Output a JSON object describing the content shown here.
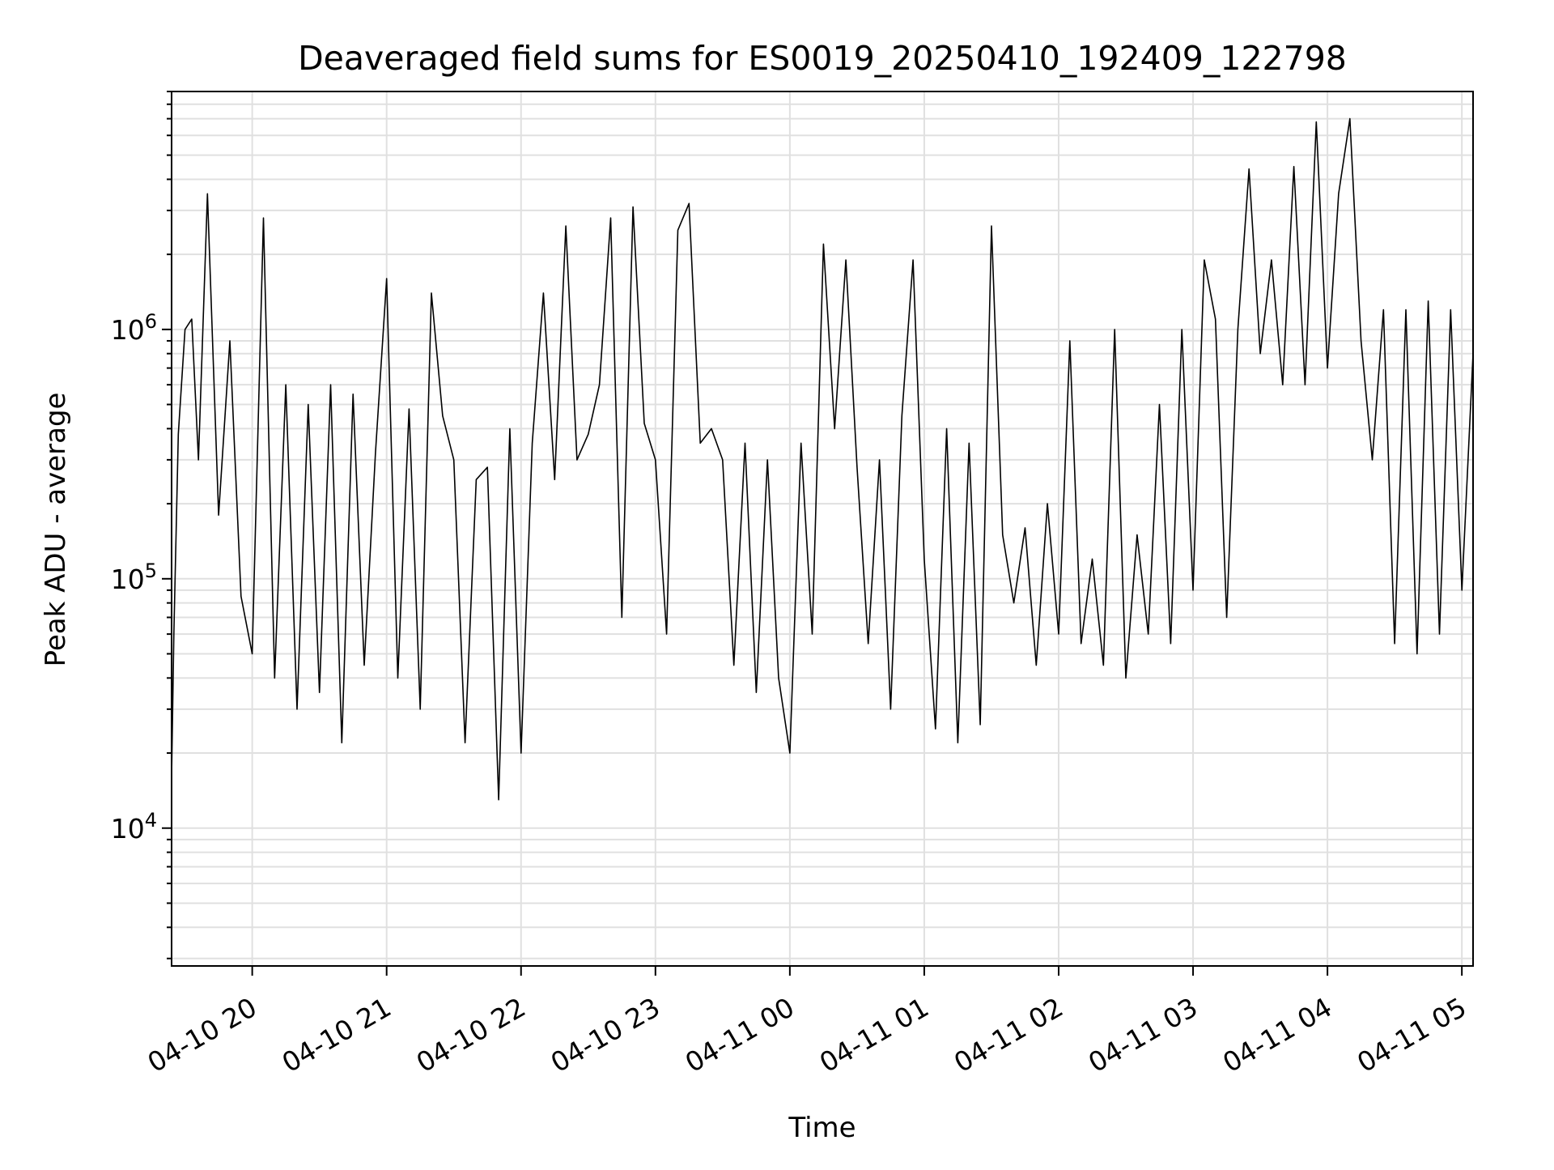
{
  "chart_data": {
    "type": "line",
    "title": "Deaveraged field sums for ES0019_20250410_192409_122798",
    "xlabel": "Time",
    "ylabel": "Peak ADU - average",
    "yscale": "log",
    "xlim": [
      "2025-04-10 19:24",
      "2025-04-11 05:05"
    ],
    "ylim": [
      2800,
      9000000
    ],
    "grid": true,
    "x_ticks": [
      {
        "value": "2025-04-10 20:00",
        "label": "04-10 20"
      },
      {
        "value": "2025-04-10 21:00",
        "label": "04-10 21"
      },
      {
        "value": "2025-04-10 22:00",
        "label": "04-10 22"
      },
      {
        "value": "2025-04-10 23:00",
        "label": "04-10 23"
      },
      {
        "value": "2025-04-11 00:00",
        "label": "04-11 00"
      },
      {
        "value": "2025-04-11 01:00",
        "label": "04-11 01"
      },
      {
        "value": "2025-04-11 02:00",
        "label": "04-11 02"
      },
      {
        "value": "2025-04-11 03:00",
        "label": "04-11 03"
      },
      {
        "value": "2025-04-11 04:00",
        "label": "04-11 04"
      },
      {
        "value": "2025-04-11 05:00",
        "label": "04-11 05"
      }
    ],
    "y_ticks": [
      {
        "value": 10000,
        "base": "10",
        "exp": "4"
      },
      {
        "value": 100000,
        "base": "10",
        "exp": "5"
      },
      {
        "value": 1000000,
        "base": "10",
        "exp": "6"
      }
    ],
    "series_color": "#000000",
    "series": [
      {
        "x": [
          "2025-04-10 19:24",
          "2025-04-10 19:25",
          "2025-04-10 19:27",
          "2025-04-10 19:30",
          "2025-04-10 19:33",
          "2025-04-10 19:36",
          "2025-04-10 19:40",
          "2025-04-10 19:45",
          "2025-04-10 19:50",
          "2025-04-10 19:55",
          "2025-04-10 20:00",
          "2025-04-10 20:05",
          "2025-04-10 20:10",
          "2025-04-10 20:15",
          "2025-04-10 20:20",
          "2025-04-10 20:25",
          "2025-04-10 20:30",
          "2025-04-10 20:35",
          "2025-04-10 20:40",
          "2025-04-10 20:45",
          "2025-04-10 20:50",
          "2025-04-10 20:55",
          "2025-04-10 21:00",
          "2025-04-10 21:05",
          "2025-04-10 21:10",
          "2025-04-10 21:15",
          "2025-04-10 21:20",
          "2025-04-10 21:25",
          "2025-04-10 21:30",
          "2025-04-10 21:35",
          "2025-04-10 21:40",
          "2025-04-10 21:45",
          "2025-04-10 21:50",
          "2025-04-10 21:55",
          "2025-04-10 22:00",
          "2025-04-10 22:05",
          "2025-04-10 22:10",
          "2025-04-10 22:15",
          "2025-04-10 22:20",
          "2025-04-10 22:25",
          "2025-04-10 22:30",
          "2025-04-10 22:35",
          "2025-04-10 22:40",
          "2025-04-10 22:45",
          "2025-04-10 22:50",
          "2025-04-10 22:55",
          "2025-04-10 23:00",
          "2025-04-10 23:05",
          "2025-04-10 23:10",
          "2025-04-10 23:15",
          "2025-04-10 23:20",
          "2025-04-10 23:25",
          "2025-04-10 23:30",
          "2025-04-10 23:35",
          "2025-04-10 23:40",
          "2025-04-10 23:45",
          "2025-04-10 23:50",
          "2025-04-10 23:55",
          "2025-04-11 00:00",
          "2025-04-11 00:05",
          "2025-04-11 00:10",
          "2025-04-11 00:15",
          "2025-04-11 00:20",
          "2025-04-11 00:25",
          "2025-04-11 00:30",
          "2025-04-11 00:35",
          "2025-04-11 00:40",
          "2025-04-11 00:45",
          "2025-04-11 00:50",
          "2025-04-11 00:55",
          "2025-04-11 01:00",
          "2025-04-11 01:05",
          "2025-04-11 01:10",
          "2025-04-11 01:15",
          "2025-04-11 01:20",
          "2025-04-11 01:25",
          "2025-04-11 01:30",
          "2025-04-11 01:35",
          "2025-04-11 01:40",
          "2025-04-11 01:45",
          "2025-04-11 01:50",
          "2025-04-11 01:55",
          "2025-04-11 02:00",
          "2025-04-11 02:05",
          "2025-04-11 02:10",
          "2025-04-11 02:15",
          "2025-04-11 02:20",
          "2025-04-11 02:25",
          "2025-04-11 02:30",
          "2025-04-11 02:35",
          "2025-04-11 02:40",
          "2025-04-11 02:45",
          "2025-04-11 02:50",
          "2025-04-11 02:55",
          "2025-04-11 03:00",
          "2025-04-11 03:05",
          "2025-04-11 03:10",
          "2025-04-11 03:15",
          "2025-04-11 03:20",
          "2025-04-11 03:25",
          "2025-04-11 03:30",
          "2025-04-11 03:35",
          "2025-04-11 03:40",
          "2025-04-11 03:45",
          "2025-04-11 03:50",
          "2025-04-11 03:55",
          "2025-04-11 04:00",
          "2025-04-11 04:05",
          "2025-04-11 04:10",
          "2025-04-11 04:15",
          "2025-04-11 04:20",
          "2025-04-11 04:25",
          "2025-04-11 04:30",
          "2025-04-11 04:35",
          "2025-04-11 04:40",
          "2025-04-11 04:45",
          "2025-04-11 04:50",
          "2025-04-11 04:55",
          "2025-04-11 05:00",
          "2025-04-11 05:05"
        ],
        "y": [
          16000,
          60000,
          380000,
          1000000,
          1100000,
          300000,
          3500000,
          180000,
          900000,
          85000,
          50000,
          2800000,
          40000,
          600000,
          30000,
          500000,
          35000,
          600000,
          22000,
          550000,
          45000,
          320000,
          1600000,
          40000,
          480000,
          30000,
          1400000,
          450000,
          300000,
          22000,
          250000,
          280000,
          13000,
          400000,
          20000,
          350000,
          1400000,
          250000,
          2600000,
          300000,
          380000,
          600000,
          2800000,
          70000,
          3100000,
          420000,
          300000,
          60000,
          2500000,
          3200000,
          350000,
          400000,
          300000,
          45000,
          350000,
          35000,
          300000,
          40000,
          20000,
          350000,
          60000,
          2200000,
          400000,
          1900000,
          280000,
          55000,
          300000,
          30000,
          450000,
          1900000,
          120000,
          25000,
          400000,
          22000,
          350000,
          26000,
          2600000,
          150000,
          80000,
          160000,
          45000,
          200000,
          60000,
          900000,
          55000,
          120000,
          45000,
          1000000,
          40000,
          150000,
          60000,
          500000,
          55000,
          1000000,
          90000,
          1900000,
          1100000,
          70000,
          1000000,
          4400000,
          800000,
          1900000,
          600000,
          4500000,
          600000,
          6800000,
          700000,
          3500000,
          7000000,
          900000,
          300000,
          1200000,
          55000,
          1200000,
          50000,
          1300000,
          60000,
          1200000,
          90000,
          800000
        ]
      }
    ]
  }
}
